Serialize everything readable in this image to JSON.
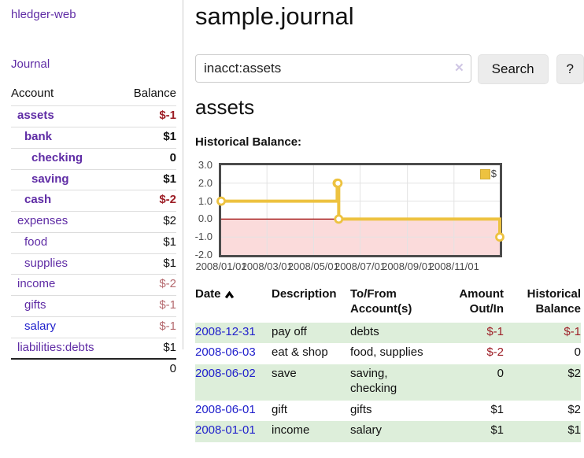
{
  "app": {
    "title": "hledger-web",
    "nav": {
      "journal": "Journal"
    }
  },
  "colors": {
    "purple_link": "#5f2ca5",
    "blue_link": "#2222cc",
    "negative_strong": "#9d1e26",
    "negative_muted": "#b56a6f",
    "row_stripe_green": "#ddeeda",
    "series_yellow": "#edc240"
  },
  "sidebar": {
    "headers": {
      "account": "Account",
      "balance": "Balance"
    },
    "accounts": [
      {
        "name": "assets",
        "depth": 1,
        "bold": true,
        "balance": "$-1",
        "neg": "strong"
      },
      {
        "name": "bank",
        "depth": 2,
        "bold": true,
        "balance": "$1",
        "neg": "none"
      },
      {
        "name": "checking",
        "depth": 3,
        "bold": true,
        "balance": "0",
        "neg": "none"
      },
      {
        "name": "saving",
        "depth": 3,
        "bold": true,
        "balance": "$1",
        "neg": "none"
      },
      {
        "name": "cash",
        "depth": 2,
        "bold": true,
        "balance": "$-2",
        "neg": "strong"
      },
      {
        "name": "expenses",
        "depth": 1,
        "bold": false,
        "balance": "$2",
        "neg": "none"
      },
      {
        "name": "food",
        "depth": 2,
        "bold": false,
        "balance": "$1",
        "neg": "none"
      },
      {
        "name": "supplies",
        "depth": 2,
        "bold": false,
        "balance": "$1",
        "neg": "none"
      },
      {
        "name": "income",
        "depth": 1,
        "bold": false,
        "balance": "$-2",
        "neg": "muted"
      },
      {
        "name": "gifts",
        "depth": 2,
        "bold": false,
        "balance": "$-1",
        "neg": "muted"
      },
      {
        "name": "salary",
        "depth": 2,
        "bold": false,
        "balance": "$-1",
        "neg": "muted",
        "link": "blue"
      },
      {
        "name": "liabilities:debts",
        "depth": 1,
        "bold": false,
        "balance": "$1",
        "neg": "none"
      }
    ],
    "total": "0"
  },
  "main": {
    "title": "sample.journal",
    "search": {
      "value": "inacct:assets",
      "clear_icon": "✕",
      "button_label": "Search",
      "help_label": "?"
    },
    "account_heading": "assets",
    "chart_label": "Historical Balance:",
    "register": {
      "headers": {
        "date": "Date",
        "description": "Description",
        "tofrom_lines": [
          "To/From",
          "Account(s)"
        ],
        "amount_lines": [
          "Amount",
          "Out/In"
        ],
        "historical_lines": [
          "Historical",
          "Balance"
        ]
      },
      "rows": [
        {
          "date": "2008-12-31",
          "description": "pay off",
          "accounts": "debts",
          "amount": "$-1",
          "amount_neg": true,
          "balance": "$-1",
          "balance_neg": true
        },
        {
          "date": "2008-06-03",
          "description": "eat & shop",
          "accounts": "food, supplies",
          "amount": "$-2",
          "amount_neg": true,
          "balance": "0",
          "balance_neg": false
        },
        {
          "date": "2008-06-02",
          "description": "save",
          "accounts": "saving, checking",
          "amount": "0",
          "amount_neg": false,
          "balance": "$2",
          "balance_neg": false
        },
        {
          "date": "2008-06-01",
          "description": "gift",
          "accounts": "gifts",
          "amount": "$1",
          "amount_neg": false,
          "balance": "$2",
          "balance_neg": false
        },
        {
          "date": "2008-01-01",
          "description": "income",
          "accounts": "salary",
          "amount": "$1",
          "amount_neg": false,
          "balance": "$1",
          "balance_neg": false
        }
      ]
    }
  },
  "chart_data": {
    "type": "line",
    "title": "Historical Balance",
    "steps": true,
    "x_domain": [
      "2008-01-01",
      "2008-12-31"
    ],
    "ylim": [
      -2,
      3
    ],
    "y_ticks": [
      3.0,
      2.0,
      1.0,
      0.0,
      -1.0,
      -2.0
    ],
    "x_ticks": [
      {
        "date": "2008-01-01",
        "label": "2008/01/01"
      },
      {
        "date": "2008-03-01",
        "label": "2008/03/01"
      },
      {
        "date": "2008-05-01",
        "label": "2008/05/01"
      },
      {
        "date": "2008-07-01",
        "label": "2008/07/01"
      },
      {
        "date": "2008-09-01",
        "label": "2008/09/01"
      },
      {
        "date": "2008-11-01",
        "label": "2008/11/01"
      }
    ],
    "series": [
      {
        "name": "$",
        "color": "#edc240",
        "points": [
          {
            "date": "2008-01-01",
            "value": 1
          },
          {
            "date": "2008-06-01",
            "value": 2
          },
          {
            "date": "2008-06-02",
            "value": 2
          },
          {
            "date": "2008-06-03",
            "value": 0
          },
          {
            "date": "2008-12-31",
            "value": -1
          }
        ]
      }
    ],
    "legend_position": "top-right",
    "grid": true,
    "grid_color": "#e3e3e3",
    "negative_region_fill": "#fbdbdb",
    "zero_line_color": "#990000"
  }
}
